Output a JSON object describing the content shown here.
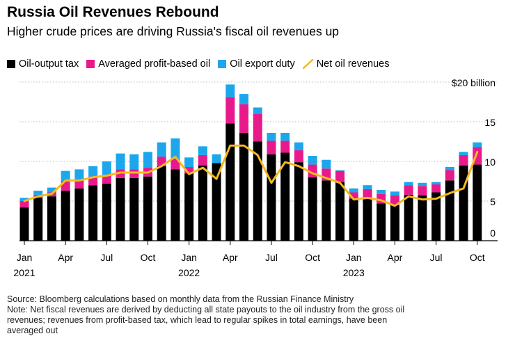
{
  "chart_data": {
    "type": "bar",
    "title": "Russia Oil Revenues Rebound",
    "subtitle": "Higher crude prices are driving Russia's fiscal oil revenues up",
    "units": "$ billion",
    "ylim": [
      0,
      20
    ],
    "yticks": [
      {
        "value": 0,
        "label": "0"
      },
      {
        "value": 5,
        "label": "5"
      },
      {
        "value": 10,
        "label": "10"
      },
      {
        "value": 15,
        "label": "15"
      },
      {
        "value": 20,
        "label": "$20 billion"
      }
    ],
    "xticks": [
      {
        "index": 0,
        "label": "Jan",
        "year": "2021"
      },
      {
        "index": 3,
        "label": "Apr",
        "year": ""
      },
      {
        "index": 6,
        "label": "Jul",
        "year": ""
      },
      {
        "index": 9,
        "label": "Oct",
        "year": ""
      },
      {
        "index": 12,
        "label": "Jan",
        "year": "2022"
      },
      {
        "index": 15,
        "label": "Apr",
        "year": ""
      },
      {
        "index": 18,
        "label": "Jul",
        "year": ""
      },
      {
        "index": 21,
        "label": "Oct",
        "year": ""
      },
      {
        "index": 24,
        "label": "Jan",
        "year": "2023"
      },
      {
        "index": 27,
        "label": "Apr",
        "year": ""
      },
      {
        "index": 30,
        "label": "Jul",
        "year": ""
      },
      {
        "index": 33,
        "label": "Oct",
        "year": ""
      }
    ],
    "categories": [
      "2021-01",
      "2021-02",
      "2021-03",
      "2021-04",
      "2021-05",
      "2021-06",
      "2021-07",
      "2021-08",
      "2021-09",
      "2021-10",
      "2021-11",
      "2021-12",
      "2022-01",
      "2022-02",
      "2022-03",
      "2022-04",
      "2022-05",
      "2022-06",
      "2022-07",
      "2022-08",
      "2022-09",
      "2022-10",
      "2022-11",
      "2022-12",
      "2023-01",
      "2023-02",
      "2023-03",
      "2023-04",
      "2023-05",
      "2023-06",
      "2023-07",
      "2023-08",
      "2023-09",
      "2023-10"
    ],
    "series": [
      {
        "name": "Oil-output tax",
        "color": "#000000",
        "kind": "bar",
        "values": [
          4.2,
          5.4,
          5.6,
          6.3,
          6.6,
          7.0,
          7.2,
          7.9,
          7.9,
          8.1,
          9.4,
          9.0,
          8.5,
          9.5,
          9.8,
          14.8,
          13.6,
          12.5,
          10.9,
          11.1,
          9.9,
          8.0,
          7.6,
          7.4,
          5.3,
          5.3,
          4.7,
          4.5,
          5.8,
          5.7,
          6.1,
          7.6,
          9.5,
          9.6
        ]
      },
      {
        "name": "Averaged profit-based oil",
        "color": "#e8198b",
        "kind": "bar",
        "values": [
          0.8,
          0.4,
          0.5,
          1.2,
          1.1,
          1.1,
          1.1,
          1.1,
          1.1,
          1.1,
          1.2,
          1.3,
          0.8,
          1.3,
          0.0,
          3.3,
          3.6,
          3.5,
          1.7,
          1.5,
          1.5,
          1.6,
          1.5,
          1.4,
          0.8,
          1.2,
          1.2,
          1.2,
          1.2,
          1.2,
          1.0,
          1.3,
          1.3,
          2.2
        ]
      },
      {
        "name": "Oil export duty",
        "color": "#1ca7ec",
        "kind": "bar",
        "values": [
          0.4,
          0.5,
          0.6,
          1.3,
          1.3,
          1.3,
          1.7,
          2.0,
          1.9,
          2.0,
          1.8,
          2.6,
          1.2,
          1.1,
          1.1,
          1.6,
          1.3,
          0.8,
          1.0,
          1.0,
          1.0,
          1.1,
          1.1,
          0.1,
          0.5,
          0.5,
          0.5,
          0.5,
          0.4,
          0.4,
          0.3,
          0.4,
          0.4,
          0.6
        ]
      },
      {
        "name": "Net oil revenues",
        "color": "#f5b91e",
        "kind": "line",
        "values": [
          5.0,
          5.6,
          5.9,
          7.6,
          7.6,
          8.0,
          8.2,
          8.6,
          8.6,
          8.6,
          9.4,
          10.6,
          8.4,
          9.2,
          7.8,
          12.0,
          12.0,
          10.8,
          7.3,
          9.9,
          9.4,
          8.5,
          7.9,
          7.3,
          5.2,
          5.4,
          5.1,
          4.4,
          5.6,
          5.2,
          5.3,
          6.0,
          6.6,
          11.2
        ]
      }
    ]
  },
  "footer": {
    "source": "Source: Bloomberg calculations based on monthly data from the Russian Finance Ministry",
    "note_line1": "Note: Net fiscal revenues are derived by deducting all state payouts to the oil industry from the gross oil",
    "note_line2": "revenues; revenues from profit-based tax, which lead to regular spikes in total earnings, have been",
    "note_line3": "averaged out"
  }
}
